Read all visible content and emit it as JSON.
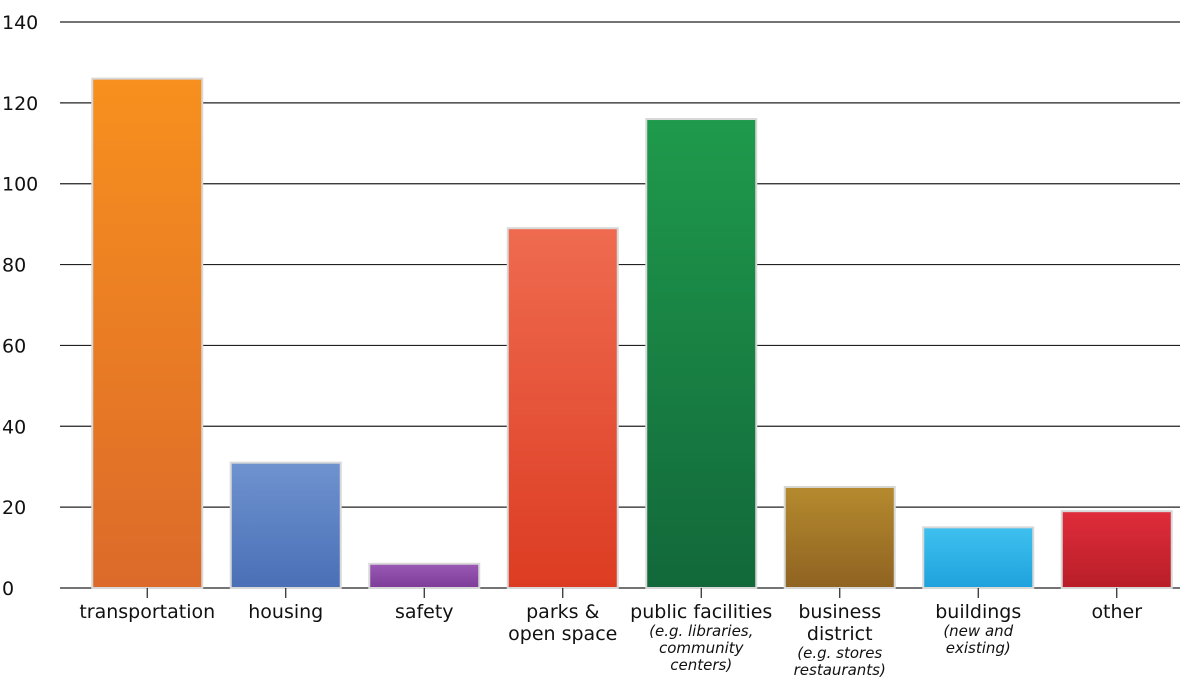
{
  "chart_data": {
    "type": "bar",
    "title": "",
    "xlabel": "",
    "ylabel": "",
    "ylim": [
      0,
      140
    ],
    "yticks": [
      0,
      20,
      40,
      60,
      80,
      100,
      120,
      140
    ],
    "grid": "horizontal",
    "categories": [
      {
        "label": [
          "transportation"
        ],
        "sublabel": []
      },
      {
        "label": [
          "housing"
        ],
        "sublabel": []
      },
      {
        "label": [
          "safety"
        ],
        "sublabel": []
      },
      {
        "label": [
          "parks &",
          "open space"
        ],
        "sublabel": []
      },
      {
        "label": [
          "public facilities"
        ],
        "sublabel": [
          "(e.g. libraries,",
          "community",
          "centers)"
        ]
      },
      {
        "label": [
          "business",
          "district"
        ],
        "sublabel": [
          "(e.g. stores",
          "restaurants)"
        ]
      },
      {
        "label": [
          "buildings"
        ],
        "sublabel": [
          "(new and",
          "existing)"
        ]
      },
      {
        "label": [
          "other"
        ],
        "sublabel": []
      }
    ],
    "values": [
      126,
      31,
      6,
      89,
      116,
      25,
      15,
      19
    ],
    "colors": [
      [
        "#f7901e",
        "#dc6a2a"
      ],
      [
        "#6f93cf",
        "#4a6fb6"
      ],
      [
        "#9b59b6",
        "#7d3c98"
      ],
      [
        "#ef6b50",
        "#dc3c22"
      ],
      [
        "#1f9a4c",
        "#12683a"
      ],
      [
        "#b58a2e",
        "#8f6321"
      ],
      [
        "#3ec1ef",
        "#1fa2dc"
      ],
      [
        "#e02c3b",
        "#b81e28"
      ]
    ]
  }
}
